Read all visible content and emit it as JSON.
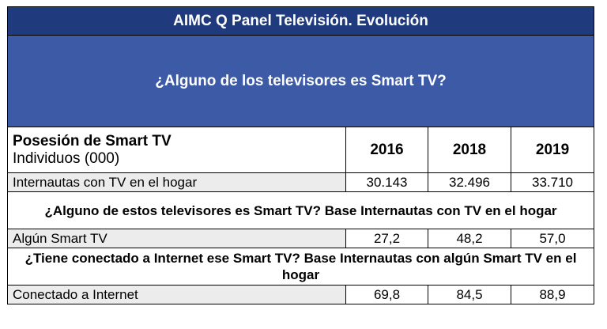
{
  "title": "AIMC Q Panel Televisión. Evolución",
  "question": "¿Alguno de los televisores es Smart TV?",
  "header": {
    "label_line1": "Posesión de Smart TV",
    "label_line2": "Individuos (000)",
    "years": [
      "2016",
      "2018",
      "2019"
    ]
  },
  "rows": [
    {
      "label": "Internautas con TV en el hogar",
      "values": [
        "30.143",
        "32.496",
        "33.710"
      ]
    },
    {
      "label": "Algún Smart TV",
      "values": [
        "27,2",
        "48,2",
        "57,0"
      ]
    },
    {
      "label": "Conectado a Internet",
      "values": [
        "69,8",
        "84,5",
        "88,9"
      ]
    }
  ],
  "sections": [
    "¿Alguno de estos televisores es Smart TV? Base Internautas con TV en el hogar",
    "¿Tiene conectado a Internet ese Smart TV? Base Internautas con algún Smart TV en el hogar"
  ],
  "colors": {
    "title_bg": "#1f3b7d",
    "question_bg": "#3c5aa6",
    "label_bg": "#ececec"
  }
}
